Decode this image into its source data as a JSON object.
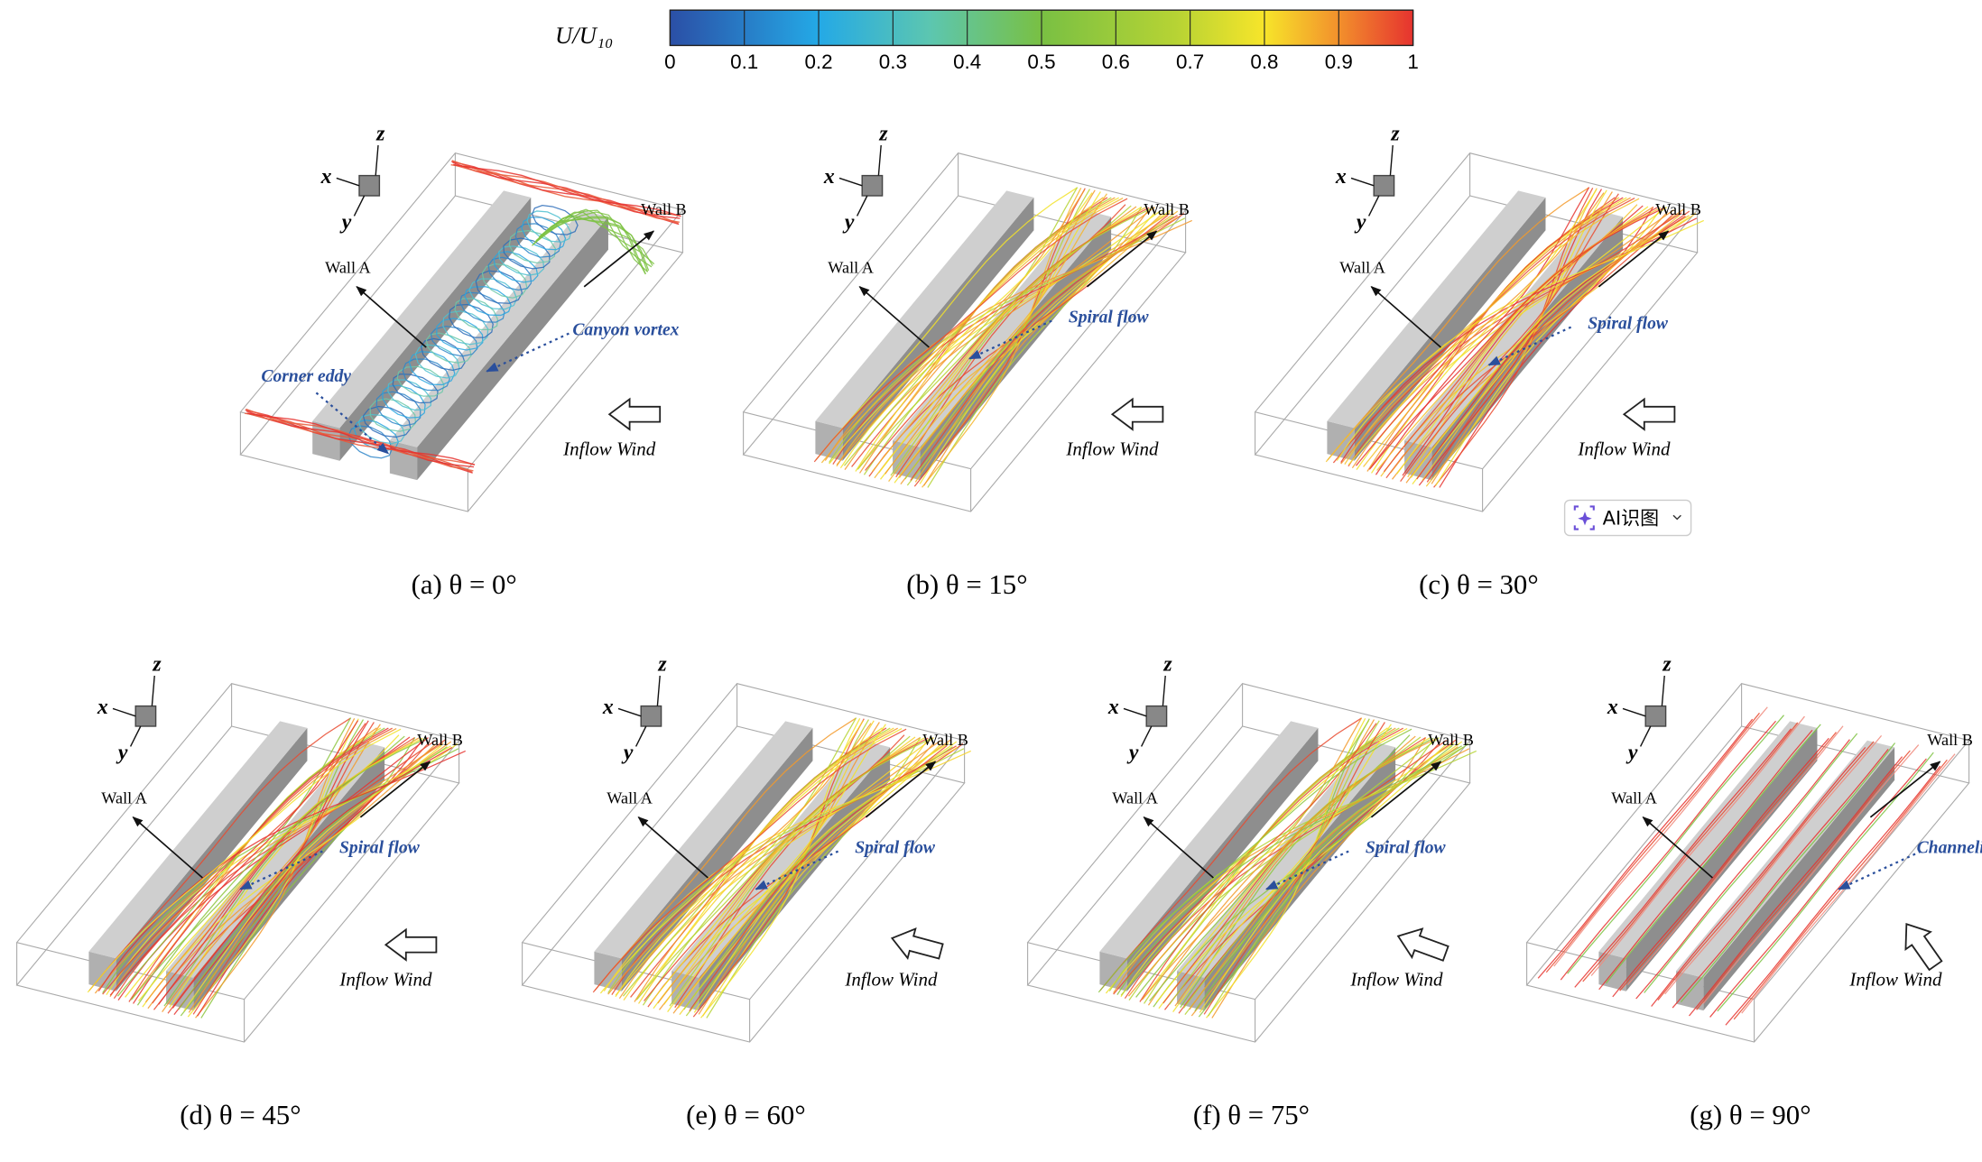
{
  "colorbar": {
    "label": "U/U₁₀",
    "lim": [
      0,
      1
    ],
    "ticks": [
      0,
      0.1,
      0.2,
      0.3,
      0.4,
      0.5,
      0.6,
      0.7,
      0.8,
      0.9,
      1
    ]
  },
  "panels": [
    {
      "caption": "(a) θ = 0°",
      "axes": [
        "x",
        "y",
        "z"
      ],
      "wall_a": "Wall A",
      "wall_b": "Wall B",
      "inflow": "Inflow Wind",
      "annotations": [
        "Canyon vortex",
        "Corner eddy"
      ]
    },
    {
      "caption": "(b) θ = 15°",
      "axes": [
        "x",
        "y",
        "z"
      ],
      "wall_a": "Wall A",
      "wall_b": "Wall B",
      "inflow": "Inflow Wind",
      "annotations": [
        "Spiral flow"
      ]
    },
    {
      "caption": "(c) θ = 30°",
      "axes": [
        "x",
        "y",
        "z"
      ],
      "wall_a": "Wall A",
      "wall_b": "Wall B",
      "inflow": "Inflow Wind",
      "annotations": [
        "Spiral flow"
      ]
    },
    {
      "caption": "(d) θ = 45°",
      "axes": [
        "x",
        "y",
        "z"
      ],
      "wall_a": "Wall A",
      "wall_b": "Wall B",
      "inflow": "Inflow Wind",
      "annotations": [
        "Spiral flow"
      ]
    },
    {
      "caption": "(e) θ = 60°",
      "axes": [
        "x",
        "y",
        "z"
      ],
      "wall_a": "Wall A",
      "wall_b": "Wall B",
      "inflow": "Inflow Wind",
      "annotations": [
        "Spiral flow"
      ]
    },
    {
      "caption": "(f) θ = 75°",
      "axes": [
        "x",
        "y",
        "z"
      ],
      "wall_a": "Wall A",
      "wall_b": "Wall B",
      "inflow": "Inflow Wind",
      "annotations": [
        "Spiral flow"
      ]
    },
    {
      "caption": "(g) θ = 90°",
      "axes": [
        "x",
        "y",
        "z"
      ],
      "wall_a": "Wall A",
      "wall_b": "Wall B",
      "inflow": "Inflow Wind",
      "annotations": [
        "Channeling flow"
      ]
    }
  ],
  "button": "AI识图"
}
